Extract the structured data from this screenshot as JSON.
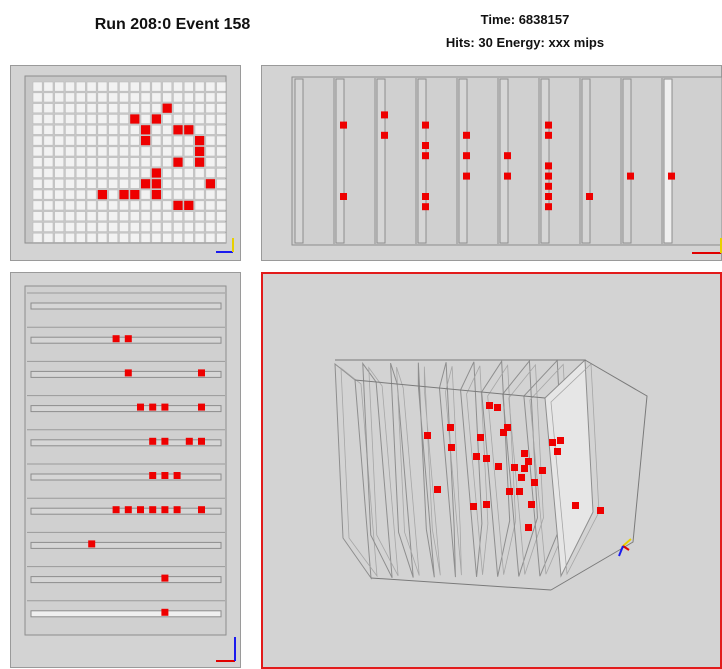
{
  "header": {
    "run_event": "Run 208:0 Event 158",
    "time": "Time: 6838157",
    "hits_energy": "Hits: 30  Energy: xxx mips"
  },
  "colors": {
    "panel_bg": "#d3d3d3",
    "hit": "#ee0000",
    "selection_border": "#e21b1b",
    "axis_x": "#e00000",
    "axis_y": "#e8d000",
    "axis_z": "#1a1aee"
  },
  "icons": [
    "axis-triad-icon"
  ],
  "front_view": {
    "grid_cols": 18,
    "grid_rows": 15,
    "hits": [
      [
        12,
        2
      ],
      [
        11,
        3
      ],
      [
        9,
        3
      ],
      [
        10,
        4
      ],
      [
        10,
        5
      ],
      [
        13,
        4
      ],
      [
        15,
        5
      ],
      [
        15,
        6
      ],
      [
        14,
        4
      ],
      [
        15,
        7
      ],
      [
        11,
        8
      ],
      [
        13,
        7
      ],
      [
        11,
        9
      ],
      [
        10,
        9
      ],
      [
        11,
        10
      ],
      [
        13,
        11
      ],
      [
        14,
        11
      ],
      [
        6,
        10
      ],
      [
        8,
        10
      ],
      [
        9,
        10
      ],
      [
        16,
        9
      ]
    ]
  },
  "top_view": {
    "layers": 10,
    "hits": [
      [
        1,
        3
      ],
      [
        1,
        10
      ],
      [
        2,
        2
      ],
      [
        2,
        4
      ],
      [
        3,
        3
      ],
      [
        3,
        5
      ],
      [
        3,
        6
      ],
      [
        3,
        10
      ],
      [
        3,
        11
      ],
      [
        4,
        4
      ],
      [
        4,
        6
      ],
      [
        4,
        8
      ],
      [
        5,
        6
      ],
      [
        5,
        8
      ],
      [
        6,
        3
      ],
      [
        6,
        4
      ],
      [
        6,
        7
      ],
      [
        6,
        8
      ],
      [
        6,
        9
      ],
      [
        6,
        10
      ],
      [
        6,
        11
      ],
      [
        7,
        10
      ],
      [
        8,
        8
      ],
      [
        9,
        8
      ]
    ]
  },
  "side_view": {
    "layers": 10,
    "hits": [
      [
        1,
        8
      ],
      [
        1,
        9
      ],
      [
        2,
        9
      ],
      [
        2,
        15
      ],
      [
        3,
        10
      ],
      [
        3,
        11
      ],
      [
        3,
        12
      ],
      [
        3,
        15
      ],
      [
        4,
        11
      ],
      [
        4,
        12
      ],
      [
        4,
        14
      ],
      [
        4,
        15
      ],
      [
        5,
        11
      ],
      [
        5,
        12
      ],
      [
        5,
        13
      ],
      [
        6,
        8
      ],
      [
        6,
        9
      ],
      [
        6,
        10
      ],
      [
        6,
        11
      ],
      [
        6,
        12
      ],
      [
        6,
        13
      ],
      [
        6,
        15
      ],
      [
        7,
        6
      ],
      [
        8,
        12
      ],
      [
        9,
        12
      ]
    ]
  }
}
